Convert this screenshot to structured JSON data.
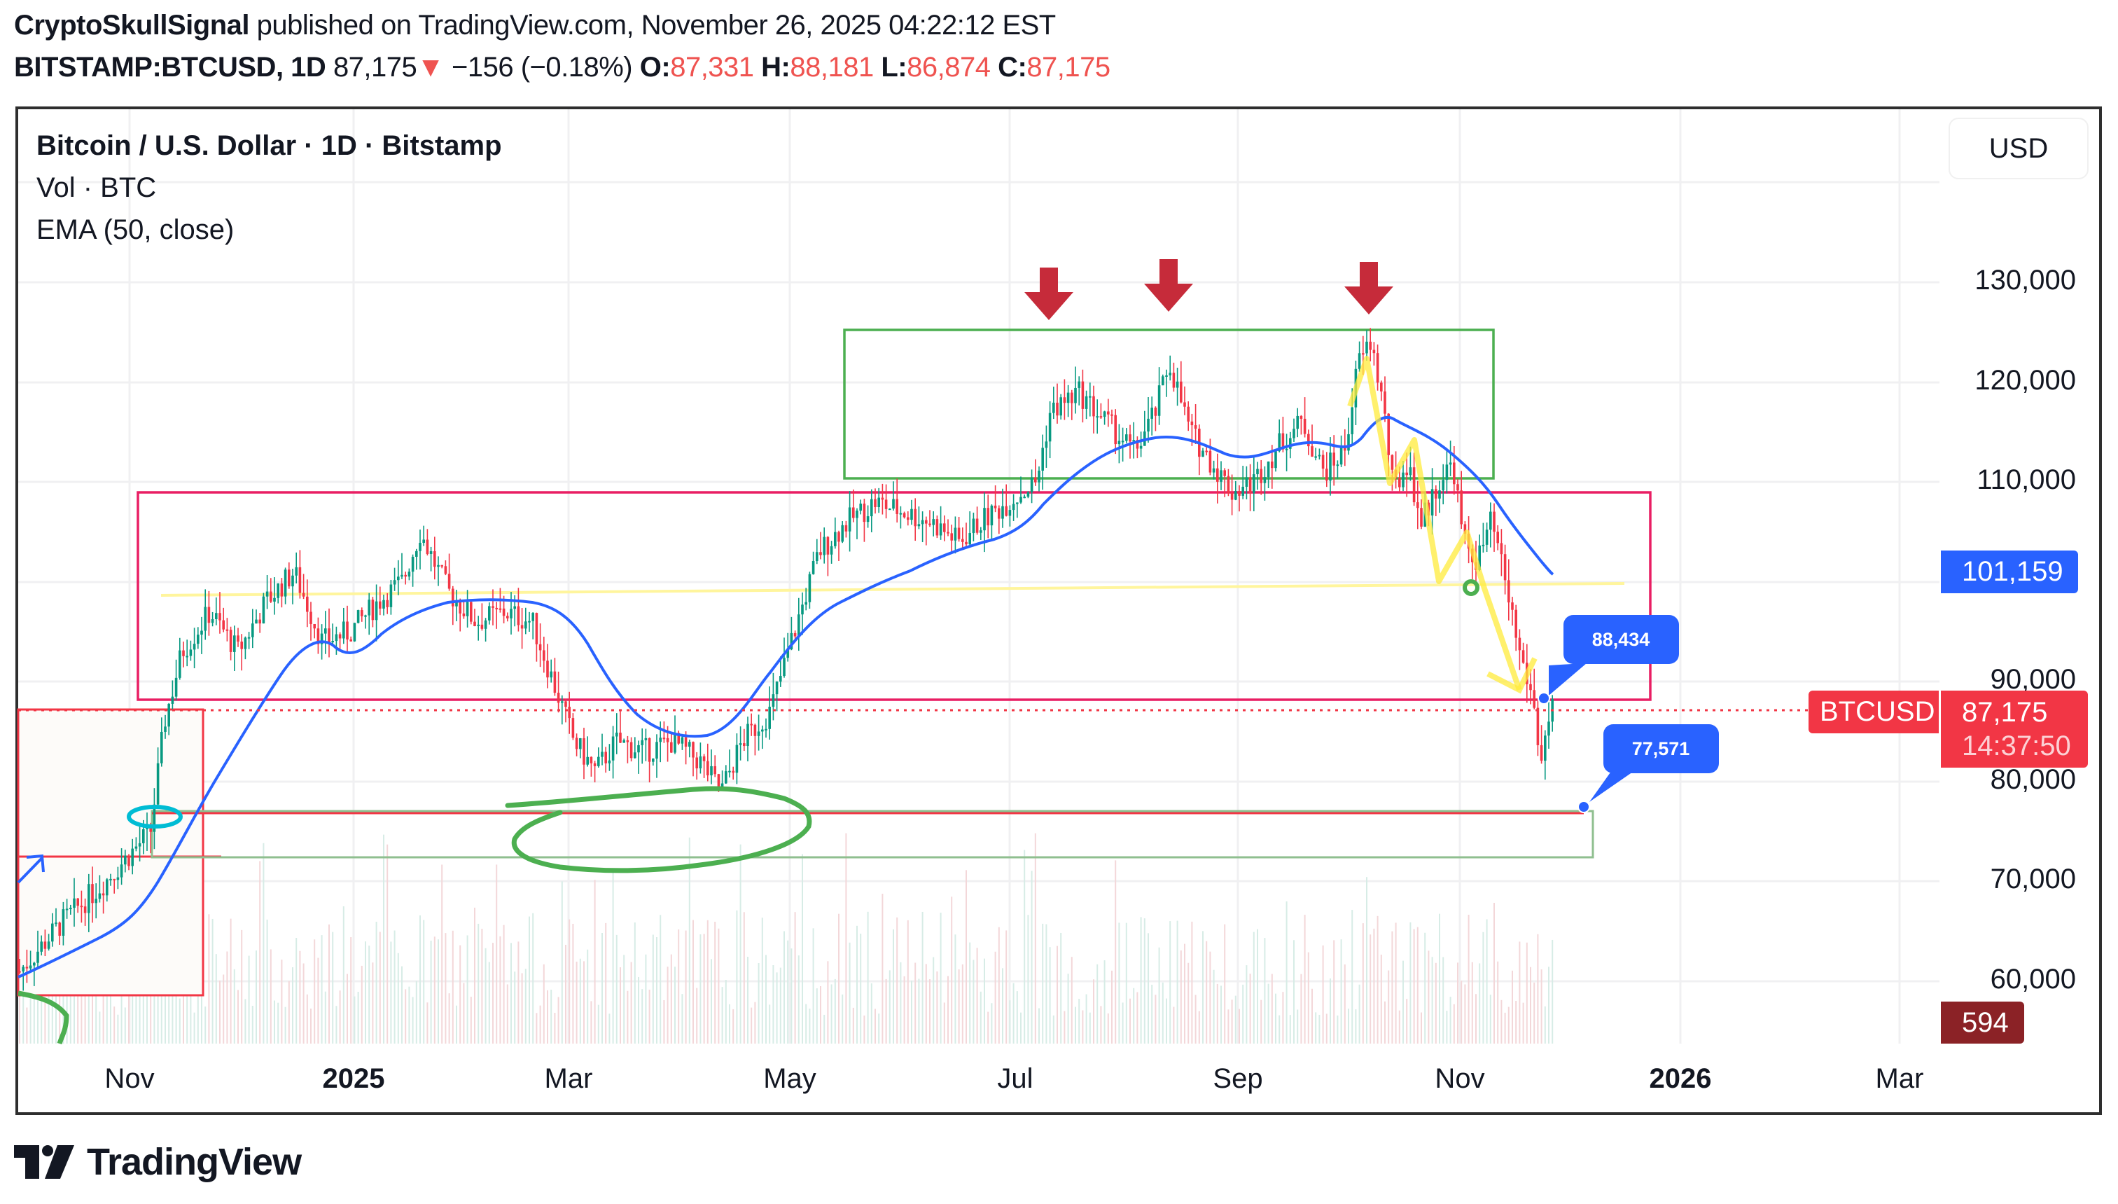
{
  "header": {
    "author": "CryptoSkullSignal",
    "published_text": "published on TradingView.com, November 26, 2025 04:22:12 EST",
    "symbol": "BITSTAMP:BTCUSD, 1D",
    "last_price": "87,175",
    "change_arrow": "▼",
    "change": "−156 (−0.18%)",
    "ohlc": {
      "o_label": "O:",
      "o": "87,331",
      "h_label": "H:",
      "h": "88,181",
      "l_label": "L:",
      "l": "86,874",
      "c_label": "C:",
      "c": "87,175"
    }
  },
  "legend": {
    "title": "Bitcoin / U.S. Dollar · 1D · Bitstamp",
    "volume": "Vol · BTC",
    "ema": "EMA (50, close)"
  },
  "currency_button": "USD",
  "price_axis": {
    "ticks": [
      "130,000",
      "120,000",
      "110,000",
      "90,000",
      "80,000",
      "70,000",
      "60,000"
    ],
    "ema_badge": "101,159",
    "symbol_badge": "BTCUSD",
    "price_badge": "87,175",
    "countdown": "14:37:50",
    "volume_badge": "594"
  },
  "time_axis": {
    "ticks": [
      "Nov",
      "2025",
      "Mar",
      "May",
      "Jul",
      "Sep",
      "Nov",
      "2026",
      "Mar"
    ]
  },
  "callouts": {
    "upper": "88,434",
    "lower": "77,571"
  },
  "footer": {
    "brand": "TradingView"
  },
  "colors": {
    "up_candle": "#089981",
    "down_candle": "#f23645",
    "ema_line": "#2962ff",
    "price_badge": "#f23645",
    "ema_badge": "#2962ff",
    "volume_badge": "#8b2226",
    "callout": "#2962ff",
    "range_box_pink": "#e91e63",
    "top_box_green": "#4caf50",
    "arrow_red": "#c62b3a",
    "zigzag_yellow": "#ffeb3b"
  },
  "chart_data": {
    "type": "candlestick",
    "title": "Bitcoin / U.S. Dollar · 1D · Bitstamp",
    "symbol": "BITSTAMP:BTCUSD",
    "interval": "1D",
    "xlabel": "",
    "ylabel": "USD",
    "ylim": [
      57000,
      138000
    ],
    "y_ticks": [
      60000,
      70000,
      80000,
      90000,
      110000,
      120000,
      130000
    ],
    "x_ticks": [
      "Nov",
      "2025",
      "Mar",
      "May",
      "Jul",
      "Sep",
      "Nov",
      "2026",
      "Mar"
    ],
    "grid": true,
    "last_bar": {
      "open": 87331,
      "high": 88181,
      "low": 86874,
      "close": 87175,
      "change": -156,
      "change_pct": -0.18
    },
    "approx_monthly_closes": {
      "x": [
        "2024-10",
        "2024-11",
        "2024-12",
        "2025-01",
        "2025-02",
        "2025-03",
        "2025-04",
        "2025-05",
        "2025-06",
        "2025-07",
        "2025-08",
        "2025-09",
        "2025-10",
        "2025-11"
      ],
      "values": [
        70000,
        96500,
        93500,
        102000,
        84500,
        82500,
        94500,
        104500,
        107000,
        115500,
        108500,
        114000,
        109500,
        87175
      ]
    },
    "notable_levels": {
      "all_time_high_approx": 126000,
      "range_box_top": 109000,
      "range_box_bottom": 88434,
      "support_line": 77571,
      "yellow_midline": 100000,
      "ema50": 101159
    },
    "series": [
      {
        "name": "EMA (50, close)",
        "last_value": 101159
      },
      {
        "name": "Vol · BTC",
        "last_value": 594
      }
    ],
    "annotations": [
      "Three red down-arrows above peaks (Jul, Aug, Oct 2025)",
      "Green box spanning ~110,000–125,000 (May–Nov 2025)",
      "Pink range box ~88,400–109,000",
      "Price callout 88,434",
      "Price callout 77,571",
      "Green ellipse around Mar–Apr 2025 lows",
      "Yellow zigzag projection down from Oct 2025 high"
    ]
  }
}
